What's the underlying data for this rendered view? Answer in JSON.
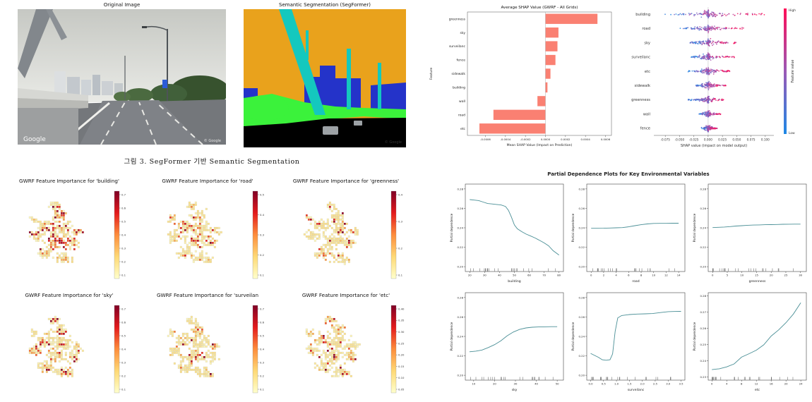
{
  "figure": {
    "original_title": "Original Image",
    "segmentation_title": "Semantic Segmentation (SegFormer)",
    "caption": "그림 3. SegFormer 기반 Semantic Segmentation",
    "google_watermark": "Google",
    "copyright": "© Google",
    "seg_palette": {
      "sky": "#E9A21C",
      "structure": "#14C8BE",
      "building": "#2433C9",
      "vegetation": "#3BF23B",
      "road": "#000000",
      "vehicle": "#9DA2A6"
    }
  },
  "chart_data": [
    {
      "id": "shap_bar",
      "type": "barh",
      "title": "Average SHAP Value (GWRF - All Grids)",
      "xlabel": "Mean SHAP Value (Impact on Prediction)",
      "ylabel": "Feature",
      "categories": [
        "greenness",
        "sky",
        "surveilanc",
        "fence",
        "sidewalk",
        "building",
        "wall",
        "road",
        "etc"
      ],
      "values": [
        0.00052,
        0.00013,
        0.00012,
        0.0001,
        5e-05,
        2e-05,
        -8e-05,
        -0.00052,
        -0.00066
      ],
      "xticks": [
        "-0.0006",
        "-0.0004",
        "-0.0002",
        "0.0000",
        "0.0002",
        "0.0004",
        "0.0006"
      ],
      "xlim": [
        -0.00078,
        0.00066
      ],
      "bar_color": "#FA8072",
      "grid": false
    },
    {
      "id": "shap_beeswarm",
      "type": "beeswarm",
      "xlabel": "SHAP value (impact on model output)",
      "features": [
        "building",
        "road",
        "sky",
        "surveilanc",
        "etc",
        "sidewalk",
        "greenness",
        "wall",
        "fence"
      ],
      "neg": [
        0.08,
        0.05,
        0.032,
        0.03,
        0.035,
        0.022,
        0.035,
        0.016,
        0.012
      ],
      "pos": [
        0.105,
        0.062,
        0.052,
        0.047,
        0.042,
        0.032,
        0.03,
        0.022,
        0.016
      ],
      "xticks": [
        "-0.075",
        "-0.050",
        "-0.025",
        "0.000",
        "0.025",
        "0.050",
        "0.075",
        "0.100"
      ],
      "xlim": [
        -0.095,
        0.115
      ],
      "colorbar": {
        "label": "Feature value",
        "high": "High",
        "low": "Low",
        "high_color": "#ff0d57",
        "low_color": "#1e88e5"
      },
      "seed": 7
    },
    {
      "id": "map_building",
      "type": "map",
      "title": "GWRF Feature Importance for 'building'",
      "cbar_ticks": [
        "0.1",
        "0.2",
        "0.3",
        "0.4",
        "0.5",
        "0.6",
        "0.7"
      ],
      "hot_frac": 0.2,
      "seed": 11
    },
    {
      "id": "map_road",
      "type": "map",
      "title": "GWRF Feature Importance for 'road'",
      "cbar_ticks": [
        "0.1",
        "0.2",
        "0.3",
        "0.4",
        "0.5"
      ],
      "hot_frac": 0.13,
      "seed": 22
    },
    {
      "id": "map_greenness",
      "type": "map",
      "title": "GWRF Feature Importance for 'greenness'",
      "cbar_ticks": [
        "0.1",
        "0.2",
        "0.3",
        "0.4"
      ],
      "hot_frac": 0.09,
      "seed": 33
    },
    {
      "id": "map_sky",
      "type": "map",
      "title": "GWRF Feature Importance for 'sky'",
      "cbar_ticks": [
        "0.1",
        "0.2",
        "0.3",
        "0.4",
        "0.5",
        "0.6",
        "0.7"
      ],
      "hot_frac": 0.13,
      "seed": 44
    },
    {
      "id": "map_surveilan",
      "type": "map",
      "title": "GWRF Feature Importance for 'surveilan",
      "cbar_ticks": [
        "0.1",
        "0.2",
        "0.3",
        "0.4",
        "0.5",
        "0.6",
        "0.7"
      ],
      "hot_frac": 0.1,
      "seed": 55
    },
    {
      "id": "map_etc",
      "type": "map",
      "title": "GWRF Feature Importance for 'etc'",
      "cbar_ticks": [
        "0.05",
        "0.10",
        "0.15",
        "0.20",
        "0.25",
        "0.30",
        "0.35",
        "0.40"
      ],
      "hot_frac": 0.1,
      "seed": 66
    },
    {
      "id": "pdp",
      "type": "pdp-grid",
      "suptitle": "Partial Dependence Plots for Key Environmental Variables",
      "ylabel": "Partial dependence",
      "line_color": "#4a8f96",
      "panels": [
        {
          "xlabel": "building",
          "xlim": [
            17,
            83
          ],
          "xticks": [
            "20",
            "30",
            "40",
            "50",
            "60",
            "70",
            "80"
          ],
          "ylim": [
            0.195,
            0.285
          ],
          "yticks": [
            "0.20",
            "0.22",
            "0.24",
            "0.26",
            "0.28"
          ],
          "rug_skew": 1.1,
          "x": [
            20,
            23,
            26,
            29,
            32,
            35,
            38,
            41,
            44,
            46,
            48,
            50,
            52,
            55,
            58,
            61,
            64,
            67,
            70,
            73,
            76,
            80
          ],
          "y": [
            0.269,
            0.2685,
            0.268,
            0.2665,
            0.265,
            0.2645,
            0.264,
            0.2635,
            0.262,
            0.258,
            0.251,
            0.243,
            0.239,
            0.236,
            0.2335,
            0.2315,
            0.2295,
            0.227,
            0.2245,
            0.2215,
            0.2165,
            0.212
          ]
        },
        {
          "xlabel": "road",
          "xlim": [
            -0.7,
            15
          ],
          "xticks": [
            "0",
            "2",
            "4",
            "6",
            "8",
            "10",
            "12",
            "14"
          ],
          "ylim": [
            0.195,
            0.285
          ],
          "yticks": [
            "0.20",
            "0.22",
            "0.24",
            "0.26",
            "0.28"
          ],
          "rug_skew": 2,
          "x": [
            0,
            1,
            2,
            3,
            4,
            5,
            6,
            7,
            8,
            9,
            10,
            11,
            12,
            13,
            14
          ],
          "y": [
            0.2395,
            0.2395,
            0.2396,
            0.2398,
            0.24,
            0.2402,
            0.241,
            0.2422,
            0.2432,
            0.244,
            0.2445,
            0.2446,
            0.2446,
            0.2447,
            0.2447
          ]
        },
        {
          "xlabel": "greenness",
          "xlim": [
            -1.5,
            32
          ],
          "xticks": [
            "0",
            "5",
            "10",
            "15",
            "20",
            "25",
            "30"
          ],
          "ylim": [
            0.195,
            0.285
          ],
          "yticks": [
            "0.20",
            "0.22",
            "0.24",
            "0.26",
            "0.28"
          ],
          "rug_skew": 1.8,
          "x": [
            0,
            2,
            4,
            6,
            8,
            10,
            12,
            14,
            16,
            18,
            20,
            22,
            24,
            26,
            28,
            30
          ],
          "y": [
            0.2402,
            0.2405,
            0.2408,
            0.2412,
            0.2418,
            0.2422,
            0.2426,
            0.2428,
            0.243,
            0.2432,
            0.2433,
            0.2434,
            0.2436,
            0.2437,
            0.2438,
            0.2438
          ]
        },
        {
          "xlabel": "sky",
          "xlim": [
            6,
            53
          ],
          "xticks": [
            "10",
            "20",
            "30",
            "40",
            "50"
          ],
          "ylim": [
            0.195,
            0.285
          ],
          "yticks": [
            "0.20",
            "0.22",
            "0.24",
            "0.26",
            "0.28"
          ],
          "rug_skew": 1.2,
          "x": [
            8,
            11,
            14,
            17,
            20,
            23,
            26,
            29,
            32,
            35,
            38,
            41,
            44,
            47,
            50
          ],
          "y": [
            0.2242,
            0.2248,
            0.226,
            0.2285,
            0.2315,
            0.2355,
            0.2405,
            0.2445,
            0.2472,
            0.2487,
            0.2494,
            0.2497,
            0.2499,
            0.25,
            0.25
          ]
        },
        {
          "xlabel": "surveilanc",
          "xlim": [
            -0.15,
            3.65
          ],
          "xticks": [
            "0.0",
            "0.5",
            "1.0",
            "1.5",
            "2.0",
            "2.5",
            "3.0",
            "3.5"
          ],
          "ylim": [
            0.195,
            0.285
          ],
          "yticks": [
            "0.20",
            "0.22",
            "0.24",
            "0.26",
            "0.28"
          ],
          "rug_skew": 2,
          "x": [
            0,
            0.15,
            0.3,
            0.45,
            0.6,
            0.75,
            0.85,
            0.95,
            1.05,
            1.2,
            1.5,
            1.8,
            2.1,
            2.4,
            2.7,
            3.0,
            3.3,
            3.5
          ],
          "y": [
            0.2225,
            0.2205,
            0.2185,
            0.216,
            0.2155,
            0.216,
            0.222,
            0.245,
            0.259,
            0.2615,
            0.2625,
            0.263,
            0.2632,
            0.2635,
            0.2645,
            0.2655,
            0.2657,
            0.2658
          ]
        },
        {
          "xlabel": "etc",
          "xlim": [
            -1,
            25.5
          ],
          "xticks": [
            "0",
            "4",
            "8",
            "12",
            "16",
            "20",
            "24"
          ],
          "ylim": [
            0.228,
            0.282
          ],
          "yticks": [
            "0.23",
            "0.24",
            "0.25",
            "0.26",
            "0.27",
            "0.28"
          ],
          "rug_skew": 1.5,
          "x": [
            0,
            2,
            4,
            6,
            8,
            10,
            12,
            14,
            16,
            18,
            20,
            22,
            24
          ],
          "y": [
            0.2345,
            0.235,
            0.2362,
            0.238,
            0.2422,
            0.2443,
            0.2465,
            0.2498,
            0.2552,
            0.259,
            0.2635,
            0.2688,
            0.2758
          ]
        }
      ]
    }
  ]
}
